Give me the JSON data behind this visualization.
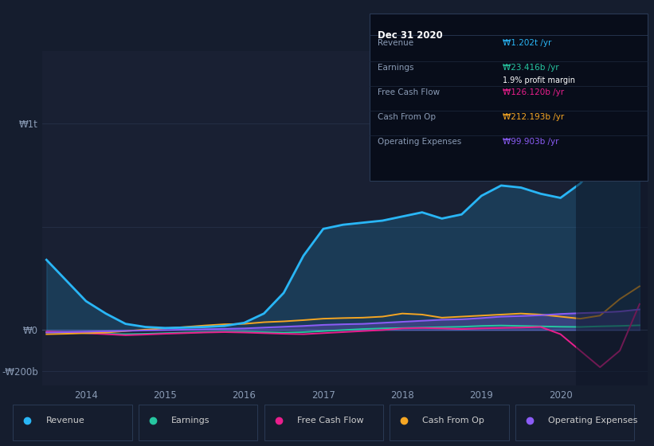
{
  "bg_color": "#151d2e",
  "chart_bg": "#192033",
  "grid_color": "#253048",
  "x_years": [
    2013.5,
    2013.75,
    2014.0,
    2014.25,
    2014.5,
    2014.75,
    2015.0,
    2015.25,
    2015.5,
    2015.75,
    2016.0,
    2016.25,
    2016.5,
    2016.75,
    2017.0,
    2017.25,
    2017.5,
    2017.75,
    2018.0,
    2018.25,
    2018.5,
    2018.75,
    2019.0,
    2019.25,
    2019.5,
    2019.75,
    2020.0,
    2020.25,
    2020.5,
    2020.75,
    2021.0
  ],
  "revenue": [
    340,
    240,
    140,
    80,
    30,
    15,
    10,
    12,
    15,
    20,
    35,
    80,
    180,
    360,
    490,
    510,
    520,
    530,
    550,
    570,
    540,
    560,
    650,
    700,
    690,
    660,
    640,
    710,
    820,
    980,
    1202
  ],
  "earnings": [
    -10,
    -12,
    -15,
    -18,
    -20,
    -18,
    -15,
    -12,
    -10,
    -8,
    -8,
    -10,
    -12,
    -10,
    -5,
    0,
    5,
    8,
    10,
    12,
    14,
    16,
    20,
    22,
    20,
    18,
    16,
    15,
    18,
    20,
    23
  ],
  "free_cash_flow": [
    -8,
    -10,
    -15,
    -20,
    -25,
    -22,
    -18,
    -15,
    -12,
    -10,
    -12,
    -15,
    -18,
    -20,
    -15,
    -10,
    -5,
    0,
    8,
    10,
    8,
    5,
    8,
    10,
    12,
    15,
    -20,
    -100,
    -180,
    -100,
    126
  ],
  "cash_from_op": [
    -20,
    -18,
    -15,
    -12,
    -5,
    2,
    8,
    15,
    22,
    28,
    30,
    38,
    42,
    48,
    55,
    58,
    60,
    65,
    80,
    75,
    60,
    65,
    70,
    75,
    80,
    75,
    65,
    55,
    70,
    150,
    212
  ],
  "operating_expenses": [
    -12,
    -10,
    -8,
    -6,
    -4,
    -2,
    0,
    2,
    4,
    6,
    8,
    12,
    16,
    20,
    25,
    28,
    30,
    35,
    40,
    45,
    50,
    52,
    58,
    65,
    68,
    72,
    78,
    82,
    85,
    90,
    100
  ],
  "colors": {
    "revenue": "#29b6f6",
    "earnings": "#26c6a0",
    "free_cash_flow": "#e91e8c",
    "cash_from_op": "#f5a623",
    "operating_expenses": "#8b5cf6"
  },
  "ytick_positions": [
    1000,
    500,
    0,
    -200
  ],
  "ytick_labels": [
    "₩1t",
    "",
    "₩0",
    "-₩200b"
  ],
  "xlim": [
    2013.45,
    2021.1
  ],
  "ylim": [
    -270,
    1350
  ],
  "xticks": [
    2014,
    2015,
    2016,
    2017,
    2018,
    2019,
    2020
  ],
  "tooltip": {
    "title": "Dec 31 2020",
    "rows": [
      {
        "label": "Revenue",
        "value": "₩1.202t /yr",
        "value_color": "#29b6f6"
      },
      {
        "label": "Earnings",
        "value": "₩23.416b /yr",
        "value_color": "#26c6a0",
        "extra": "1.9% profit margin"
      },
      {
        "label": "Free Cash Flow",
        "value": "₩126.120b /yr",
        "value_color": "#e91e8c"
      },
      {
        "label": "Cash From Op",
        "value": "₩212.193b /yr",
        "value_color": "#f5a623"
      },
      {
        "label": "Operating Expenses",
        "value": "₩99.903b /yr",
        "value_color": "#8b5cf6"
      }
    ]
  },
  "legend_items": [
    {
      "label": "Revenue",
      "color": "#29b6f6"
    },
    {
      "label": "Earnings",
      "color": "#26c6a0"
    },
    {
      "label": "Free Cash Flow",
      "color": "#e91e8c"
    },
    {
      "label": "Cash From Op",
      "color": "#f5a623"
    },
    {
      "label": "Operating Expenses",
      "color": "#8b5cf6"
    }
  ]
}
